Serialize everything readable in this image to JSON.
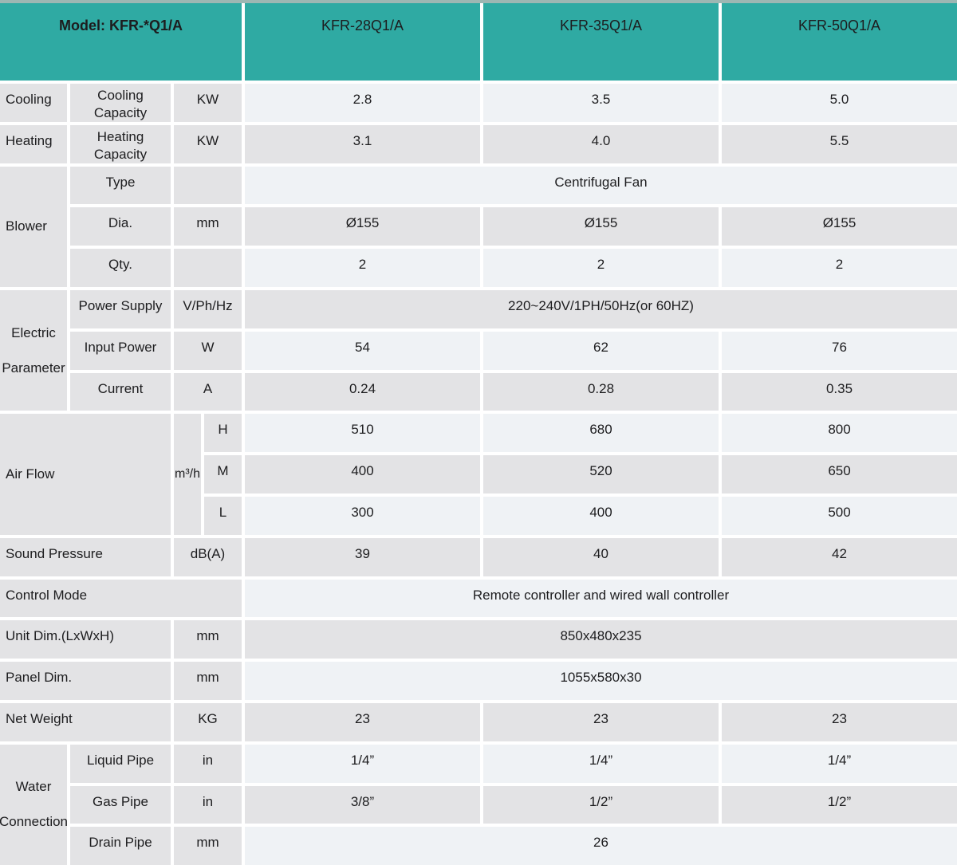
{
  "colors": {
    "header_teal": "#2faaa3",
    "row_gray": "#e3e3e5",
    "row_light": "#eff2f5",
    "top_strip": "#9db7b3"
  },
  "header": {
    "model_label": "Model: KFR-*Q1/A",
    "models": [
      "KFR-28Q1/A",
      "KFR-35Q1/A",
      "KFR-50Q1/A"
    ]
  },
  "cooling": {
    "cat": "Cooling",
    "label": "Cooling Capacity",
    "unit": "KW",
    "v": [
      "2.8",
      "3.5",
      "5.0"
    ]
  },
  "heating": {
    "cat": "Heating",
    "label": "Heating Capacity",
    "unit": "KW",
    "v": [
      "3.1",
      "4.0",
      "5.5"
    ]
  },
  "blower": {
    "cat": "Blower",
    "type": {
      "label": "Type",
      "unit": "",
      "value": "Centrifugal Fan"
    },
    "dia": {
      "label": "Dia.",
      "unit": "mm",
      "v": [
        "Ø155",
        "Ø155",
        "Ø155"
      ]
    },
    "qty": {
      "label": "Qty.",
      "unit": "",
      "v": [
        "2",
        "2",
        "2"
      ]
    }
  },
  "electric": {
    "cat": "Electric Parameter",
    "supply": {
      "label": "Power Supply",
      "unit": "V/Ph/Hz",
      "value": "220~240V/1PH/50Hz(or 60HZ)"
    },
    "input": {
      "label": "Input Power",
      "unit": "W",
      "v": [
        "54",
        "62",
        "76"
      ]
    },
    "current": {
      "label": "Current",
      "unit": "A",
      "v": [
        "0.24",
        "0.28",
        "0.35"
      ]
    }
  },
  "airflow": {
    "cat": "Air Flow",
    "unit": "m³/h",
    "h": {
      "label": "H",
      "v": [
        "510",
        "680",
        "800"
      ]
    },
    "m": {
      "label": "M",
      "v": [
        "400",
        "520",
        "650"
      ]
    },
    "l": {
      "label": "L",
      "v": [
        "300",
        "400",
        "500"
      ]
    }
  },
  "sound": {
    "label": "Sound Pressure",
    "unit": "dB(A)",
    "v": [
      "39",
      "40",
      "42"
    ]
  },
  "control": {
    "label": "Control Mode",
    "value": "Remote controller and wired wall controller"
  },
  "unit_dim": {
    "label": "Unit Dim.(LxWxH)",
    "unit": "mm",
    "value": "850x480x235"
  },
  "panel_dim": {
    "label": "Panel Dim.",
    "unit": "mm",
    "value": "1055x580x30"
  },
  "net_weight": {
    "label": "Net Weight",
    "unit": "KG",
    "v": [
      "23",
      "23",
      "23"
    ]
  },
  "water": {
    "cat": "Water Connection",
    "liquid": {
      "label": "Liquid Pipe",
      "unit": "in",
      "v": [
        "1/4”",
        "1/4”",
        "1/4”"
      ]
    },
    "gas": {
      "label": "Gas Pipe",
      "unit": "in",
      "v": [
        "3/8”",
        "1/2”",
        "1/2”"
      ]
    },
    "drain": {
      "label": "Drain Pipe",
      "unit": "mm",
      "value": "26"
    }
  }
}
